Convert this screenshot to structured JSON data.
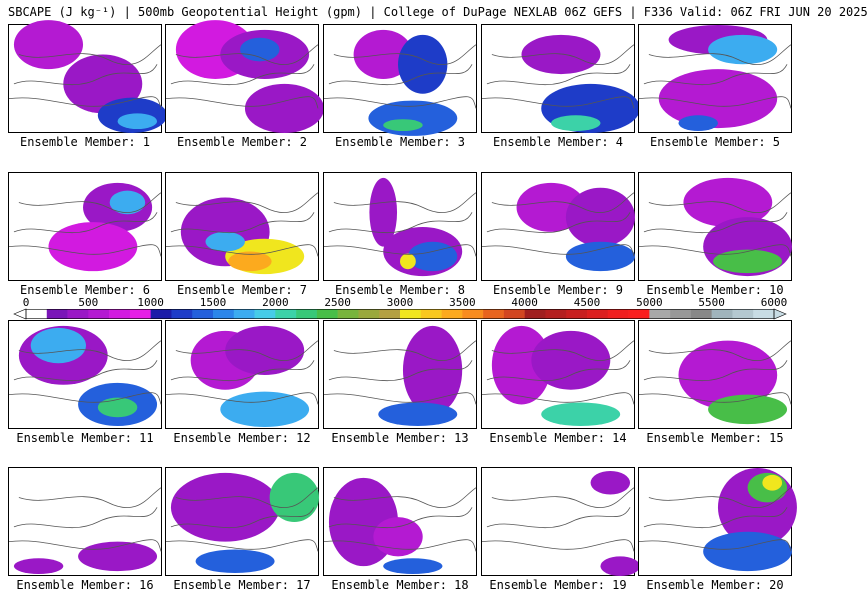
{
  "title": "SBCAPE (J kg⁻¹) | 500mb Geopotential Height (gpm) | College of DuPage NEXLAB 06Z GEFS | F336 Valid: 06Z FRI JUN 20 2025",
  "panels": [
    {
      "label": "Ensemble Member: 1"
    },
    {
      "label": "Ensemble Member: 2"
    },
    {
      "label": "Ensemble Member: 3"
    },
    {
      "label": "Ensemble Member: 4"
    },
    {
      "label": "Ensemble Member: 5"
    },
    {
      "label": "Ensemble Member: 6"
    },
    {
      "label": "Ensemble Member: 7"
    },
    {
      "label": "Ensemble Member: 8"
    },
    {
      "label": "Ensemble Member: 9"
    },
    {
      "label": "Ensemble Member: 10"
    },
    {
      "label": "Ensemble Member: 11"
    },
    {
      "label": "Ensemble Member: 12"
    },
    {
      "label": "Ensemble Member: 13"
    },
    {
      "label": "Ensemble Member: 14"
    },
    {
      "label": "Ensemble Member: 15"
    },
    {
      "label": "Ensemble Member: 16"
    },
    {
      "label": "Ensemble Member: 17"
    },
    {
      "label": "Ensemble Member: 18"
    },
    {
      "label": "Ensemble Member: 19"
    },
    {
      "label": "Ensemble Member: 20"
    }
  ],
  "colorbar": {
    "tick_labels": [
      "0",
      "500",
      "1000",
      "1500",
      "2000",
      "2500",
      "3000",
      "3500",
      "4000",
      "4500",
      "5000",
      "5500",
      "6000"
    ],
    "colors": [
      "#ffffff",
      "#7a16b8",
      "#9a18c6",
      "#b41ad2",
      "#d21ae0",
      "#e61ee6",
      "#1c1ca8",
      "#1e3cc8",
      "#2460dc",
      "#2c86ea",
      "#3cacf0",
      "#46cce8",
      "#3cd2a8",
      "#38c878",
      "#48be48",
      "#78b43c",
      "#9aa83c",
      "#b4a042",
      "#f0e61e",
      "#f8c81e",
      "#fcaa1e",
      "#f88c1e",
      "#e8641e",
      "#d24620",
      "#a01e1e",
      "#b41e1e",
      "#c81e1e",
      "#dc1e1e",
      "#f01e1e",
      "#fa1e1e",
      "#a8a8a8",
      "#989898",
      "#888888",
      "#a0b4bc",
      "#b4c8d0",
      "#c8dce4"
    ]
  }
}
